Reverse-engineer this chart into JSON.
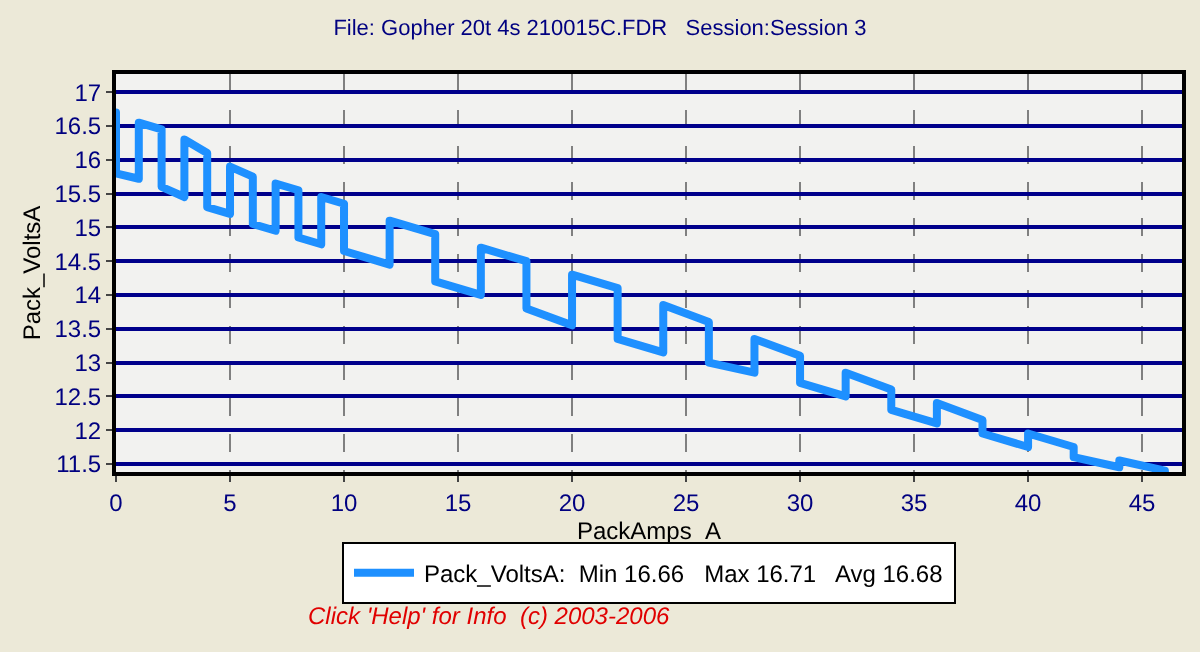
{
  "chart_data": {
    "type": "line",
    "title": "File: Gopher 20t 4s 210015C.FDR   Session:Session 3",
    "xlabel": "PackAmps_A",
    "ylabel": "Pack_VoltsA",
    "x": [
      0,
      0,
      1,
      1,
      2,
      2,
      3,
      3,
      4,
      4,
      5,
      5,
      6,
      6,
      7,
      7,
      8,
      8,
      9,
      9,
      10,
      10,
      12,
      12,
      14,
      14,
      16,
      16,
      18,
      18,
      20,
      20,
      22,
      22,
      24,
      24,
      26,
      26,
      28,
      28,
      30,
      30,
      32,
      32,
      34,
      34,
      36,
      36,
      38,
      38,
      40,
      40,
      42,
      42,
      44,
      44,
      46,
      46
    ],
    "series": [
      {
        "name": "Pack_VoltsA:  Min 16.66   Max 16.71   Avg 16.68",
        "color": "#1e90ff",
        "values": [
          16.7,
          15.8,
          15.72,
          16.55,
          16.45,
          15.6,
          15.45,
          16.3,
          16.1,
          15.3,
          15.2,
          15.9,
          15.75,
          15.05,
          14.95,
          15.65,
          15.55,
          14.85,
          14.75,
          15.45,
          15.35,
          14.65,
          14.45,
          15.1,
          14.9,
          14.2,
          14.0,
          14.7,
          14.5,
          13.8,
          13.55,
          14.3,
          14.1,
          13.35,
          13.15,
          13.85,
          13.6,
          13.0,
          12.85,
          13.35,
          13.1,
          12.7,
          12.5,
          12.85,
          12.6,
          12.3,
          12.1,
          12.4,
          12.15,
          11.95,
          11.75,
          11.95,
          11.75,
          11.6,
          11.45,
          11.55,
          11.4,
          11.38
        ]
      }
    ],
    "xlim": [
      0,
      46.75
    ],
    "ylim": [
      11.38,
      17.27
    ],
    "xticks": [
      0,
      5,
      10,
      15,
      20,
      25,
      30,
      35,
      40,
      45
    ],
    "yticks": [
      11.5,
      12,
      12.5,
      13,
      13.5,
      14,
      14.5,
      15,
      15.5,
      16,
      16.5,
      17
    ],
    "grid": true,
    "legend": "bottom",
    "marker": "none",
    "line_style": "solid",
    "annotations": [
      "Click 'Help' for Info  (c) 2003-2006"
    ]
  }
}
